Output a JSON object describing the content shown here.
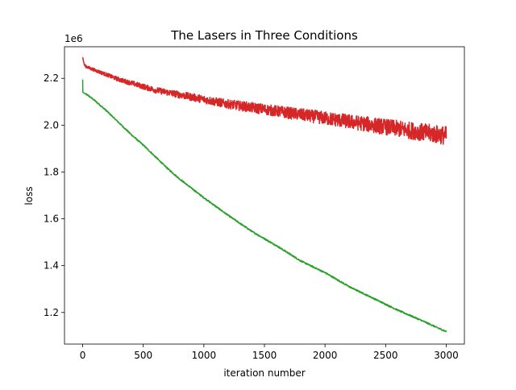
{
  "chart_data": {
    "type": "line",
    "title": "The Lasers in Three Conditions",
    "xlabel": "iteration number",
    "ylabel": "loss",
    "y_offset_label": "1e6",
    "xlim": [
      -150,
      3150
    ],
    "ylim": [
      1.065,
      2.335
    ],
    "xticks": [
      0,
      500,
      1000,
      1500,
      2000,
      2500,
      3000
    ],
    "xtick_labels": [
      "0",
      "500",
      "1000",
      "1500",
      "2000",
      "2500",
      "3000"
    ],
    "yticks": [
      1.2,
      1.4,
      1.6,
      1.8,
      2.0,
      2.2
    ],
    "ytick_labels": [
      "1.2",
      "1.4",
      "1.6",
      "1.8",
      "2.0",
      "2.2"
    ],
    "grid": false,
    "legend": "none",
    "series": [
      {
        "color": "#2ca02c",
        "noise": 0.003,
        "points": [
          [
            0,
            2.195
          ],
          [
            2,
            2.14
          ],
          [
            50,
            2.125
          ],
          [
            100,
            2.105
          ],
          [
            200,
            2.06
          ],
          [
            300,
            2.01
          ],
          [
            400,
            1.96
          ],
          [
            500,
            1.915
          ],
          [
            600,
            1.865
          ],
          [
            700,
            1.815
          ],
          [
            800,
            1.77
          ],
          [
            900,
            1.73
          ],
          [
            1000,
            1.69
          ],
          [
            1200,
            1.615
          ],
          [
            1400,
            1.545
          ],
          [
            1600,
            1.485
          ],
          [
            1800,
            1.42
          ],
          [
            2000,
            1.37
          ],
          [
            2200,
            1.31
          ],
          [
            2400,
            1.26
          ],
          [
            2600,
            1.21
          ],
          [
            2800,
            1.165
          ],
          [
            3000,
            1.118
          ]
        ]
      },
      {
        "color": "#d62728",
        "noise_start": 0.006,
        "noise_end": 0.04,
        "points": [
          [
            0,
            2.29
          ],
          [
            15,
            2.255
          ],
          [
            50,
            2.245
          ],
          [
            100,
            2.235
          ],
          [
            200,
            2.215
          ],
          [
            300,
            2.195
          ],
          [
            400,
            2.18
          ],
          [
            500,
            2.165
          ],
          [
            600,
            2.15
          ],
          [
            700,
            2.14
          ],
          [
            800,
            2.13
          ],
          [
            900,
            2.12
          ],
          [
            1000,
            2.11
          ],
          [
            1200,
            2.09
          ],
          [
            1400,
            2.075
          ],
          [
            1600,
            2.06
          ],
          [
            1800,
            2.045
          ],
          [
            2000,
            2.03
          ],
          [
            2200,
            2.015
          ],
          [
            2400,
            2.0
          ],
          [
            2600,
            1.985
          ],
          [
            2800,
            1.97
          ],
          [
            3000,
            1.955
          ]
        ]
      }
    ]
  }
}
